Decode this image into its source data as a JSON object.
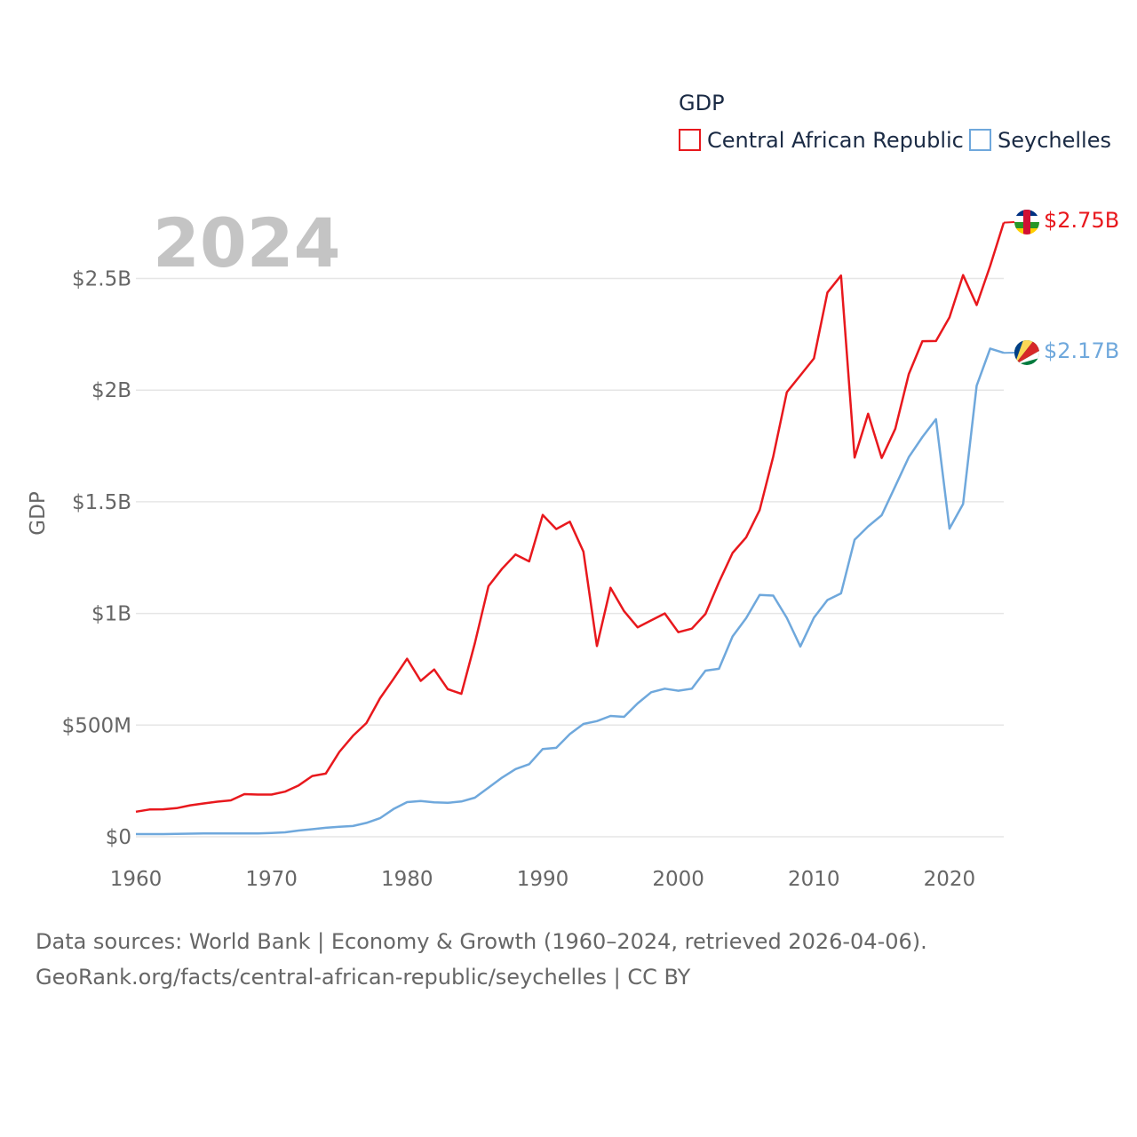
{
  "legend": {
    "title": "GDP"
  },
  "year_label": "2024",
  "footer": {
    "line1": "Data sources: World Bank | Economy & Growth (1960–2024, retrieved 2026-04-06).",
    "line2": "GeoRank.org/facts/central-african-republic/seychelles | CC BY"
  },
  "chart_data": {
    "type": "line",
    "title": "",
    "xlabel": "",
    "ylabel": "GDP",
    "xlim": [
      1960,
      2024
    ],
    "ylim": [
      0,
      2.85
    ],
    "y_ticks": [
      {
        "value": 0,
        "label": "$0"
      },
      {
        "value": 0.5,
        "label": "$500M"
      },
      {
        "value": 1,
        "label": "$1B"
      },
      {
        "value": 1.5,
        "label": "$1.5B"
      },
      {
        "value": 2,
        "label": "$2B"
      },
      {
        "value": 2.5,
        "label": "$2.5B"
      }
    ],
    "x_ticks": [
      {
        "value": 1960,
        "label": "1960"
      },
      {
        "value": 1970,
        "label": "1970"
      },
      {
        "value": 1980,
        "label": "1980"
      },
      {
        "value": 1990,
        "label": "1990"
      },
      {
        "value": 2000,
        "label": "2000"
      },
      {
        "value": 2010,
        "label": "2010"
      },
      {
        "value": 2020,
        "label": "2020"
      }
    ],
    "x": [
      1960,
      1961,
      1962,
      1963,
      1964,
      1965,
      1966,
      1967,
      1968,
      1969,
      1970,
      1971,
      1972,
      1973,
      1974,
      1975,
      1976,
      1977,
      1978,
      1979,
      1980,
      1981,
      1982,
      1983,
      1984,
      1985,
      1986,
      1987,
      1988,
      1989,
      1990,
      1991,
      1992,
      1993,
      1994,
      1995,
      1996,
      1997,
      1998,
      1999,
      2000,
      2001,
      2002,
      2003,
      2004,
      2005,
      2006,
      2007,
      2008,
      2009,
      2010,
      2011,
      2012,
      2013,
      2014,
      2015,
      2016,
      2017,
      2018,
      2019,
      2020,
      2021,
      2022,
      2023,
      2024
    ],
    "series": [
      {
        "name": "Central African Republic",
        "color": "#e8181d",
        "end_label": "$2.75B",
        "values": [
          0.112,
          0.122,
          0.123,
          0.128,
          0.141,
          0.149,
          0.157,
          0.163,
          0.191,
          0.189,
          0.189,
          0.202,
          0.23,
          0.272,
          0.283,
          0.38,
          0.452,
          0.509,
          0.62,
          0.707,
          0.797,
          0.698,
          0.749,
          0.661,
          0.64,
          0.867,
          1.122,
          1.2,
          1.264,
          1.233,
          1.441,
          1.378,
          1.411,
          1.277,
          0.854,
          1.115,
          1.01,
          0.938,
          0.969,
          1.0,
          0.916,
          0.932,
          0.998,
          1.14,
          1.271,
          1.341,
          1.463,
          1.703,
          1.991,
          2.066,
          2.142,
          2.437,
          2.513,
          1.698,
          1.894,
          1.696,
          1.827,
          2.072,
          2.219,
          2.22,
          2.326,
          2.515,
          2.381,
          2.556,
          2.75
        ]
      },
      {
        "name": "Seychelles",
        "color": "#6fa8dc",
        "end_label": "$2.17B",
        "values": [
          0.012,
          0.012,
          0.012,
          0.013,
          0.014,
          0.015,
          0.015,
          0.015,
          0.015,
          0.015,
          0.017,
          0.02,
          0.028,
          0.034,
          0.04,
          0.045,
          0.048,
          0.062,
          0.083,
          0.124,
          0.155,
          0.16,
          0.154,
          0.152,
          0.158,
          0.175,
          0.22,
          0.265,
          0.303,
          0.325,
          0.393,
          0.398,
          0.46,
          0.505,
          0.518,
          0.541,
          0.537,
          0.597,
          0.647,
          0.663,
          0.654,
          0.663,
          0.744,
          0.752,
          0.897,
          0.979,
          1.083,
          1.08,
          0.98,
          0.852,
          0.981,
          1.06,
          1.09,
          1.33,
          1.39,
          1.44,
          1.57,
          1.7,
          1.79,
          1.87,
          1.38,
          1.49,
          2.02,
          2.186,
          2.167
        ]
      }
    ]
  }
}
